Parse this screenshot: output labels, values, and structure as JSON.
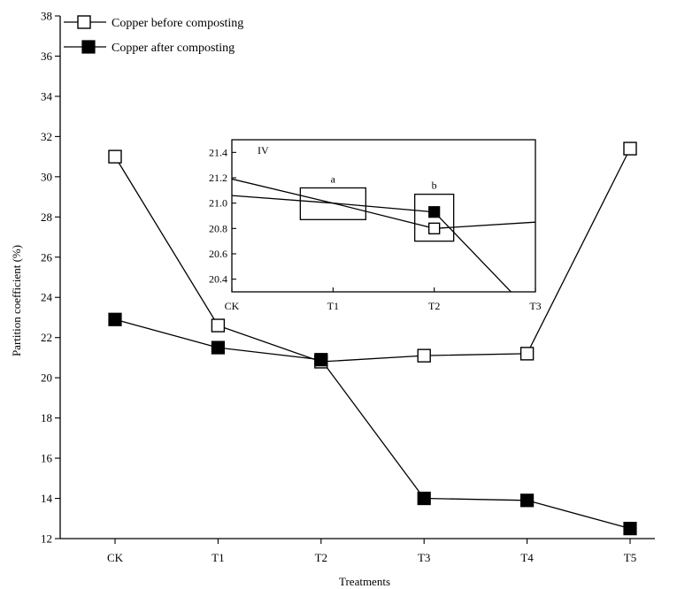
{
  "chart_data": [
    {
      "type": "line",
      "title": "",
      "xlabel": "Treatments",
      "ylabel": "Partition coefficient (%)",
      "categories": [
        "CK",
        "T1",
        "T2",
        "T3",
        "T4",
        "T5"
      ],
      "ylim": [
        12,
        38
      ],
      "yticks": [
        "12",
        "14",
        "16",
        "18",
        "20",
        "22",
        "24",
        "26",
        "28",
        "30",
        "32",
        "34",
        "36",
        "38"
      ],
      "grid": false,
      "legend_position": "top-left",
      "series": [
        {
          "name": "Copper before composting",
          "marker": "open-square",
          "values": [
            31.0,
            22.6,
            20.8,
            21.1,
            21.2,
            31.4
          ]
        },
        {
          "name": "Copper after composting",
          "marker": "filled-square",
          "values": [
            22.9,
            21.5,
            20.9,
            14.0,
            13.9,
            12.5
          ]
        }
      ]
    },
    {
      "type": "line",
      "panel_label": "IV",
      "categories": [
        "CK",
        "T1",
        "T2",
        "T3"
      ],
      "ylim": [
        20.3,
        21.5
      ],
      "yticks": [
        "20.4",
        "20.6",
        "20.8",
        "21.0",
        "21.2",
        "21.4"
      ],
      "annotations": [
        {
          "label": "a",
          "x": "T1",
          "y_range": [
            20.87,
            21.12
          ]
        },
        {
          "label": "b",
          "x": "T2",
          "y_range": [
            20.7,
            21.07
          ]
        }
      ],
      "series": [
        {
          "name": "Copper before composting",
          "points": [
            [
              "CK",
              21.06
            ],
            [
              "T1",
              21.0
            ],
            [
              "T2",
              20.8
            ],
            [
              "T3",
              20.85
            ]
          ],
          "markers_at": [
            "T2"
          ]
        },
        {
          "name": "Copper after composting",
          "points": [
            [
              "CK",
              21.19
            ],
            [
              "T1",
              21.0
            ],
            [
              "T2",
              20.93
            ],
            [
              "T3",
              20.1
            ]
          ],
          "markers_at": [
            "T2"
          ]
        }
      ]
    }
  ]
}
